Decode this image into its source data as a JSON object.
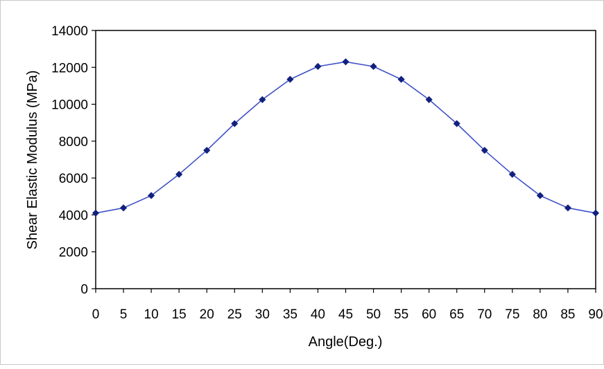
{
  "chart_data": {
    "type": "line",
    "title": "",
    "xlabel": "Angle(Deg.)",
    "ylabel": "Shear Elastic Modulus (MPa)",
    "x": [
      0,
      5,
      10,
      15,
      20,
      25,
      30,
      35,
      40,
      45,
      50,
      55,
      60,
      65,
      70,
      75,
      80,
      85,
      90
    ],
    "series": [
      {
        "values": [
          4100,
          4380,
          5050,
          6200,
          7500,
          8950,
          10250,
          11350,
          12050,
          12300,
          12050,
          11350,
          10250,
          8950,
          7500,
          6200,
          5050,
          4380,
          4100
        ],
        "color": "#1f2a9c",
        "marker": "diamond"
      }
    ],
    "xlim": [
      0,
      90
    ],
    "ylim": [
      0,
      14000
    ],
    "x_ticks": [
      0,
      5,
      10,
      15,
      20,
      25,
      30,
      35,
      40,
      45,
      50,
      55,
      60,
      65,
      70,
      75,
      80,
      85,
      90
    ],
    "y_ticks": [
      0,
      2000,
      4000,
      6000,
      8000,
      10000,
      12000,
      14000
    ],
    "grid": false,
    "legend": "none"
  },
  "colors": {
    "line": "#3f51c8",
    "marker": "#12207e",
    "axis": "#000000",
    "frame": "#c8c8c8"
  }
}
